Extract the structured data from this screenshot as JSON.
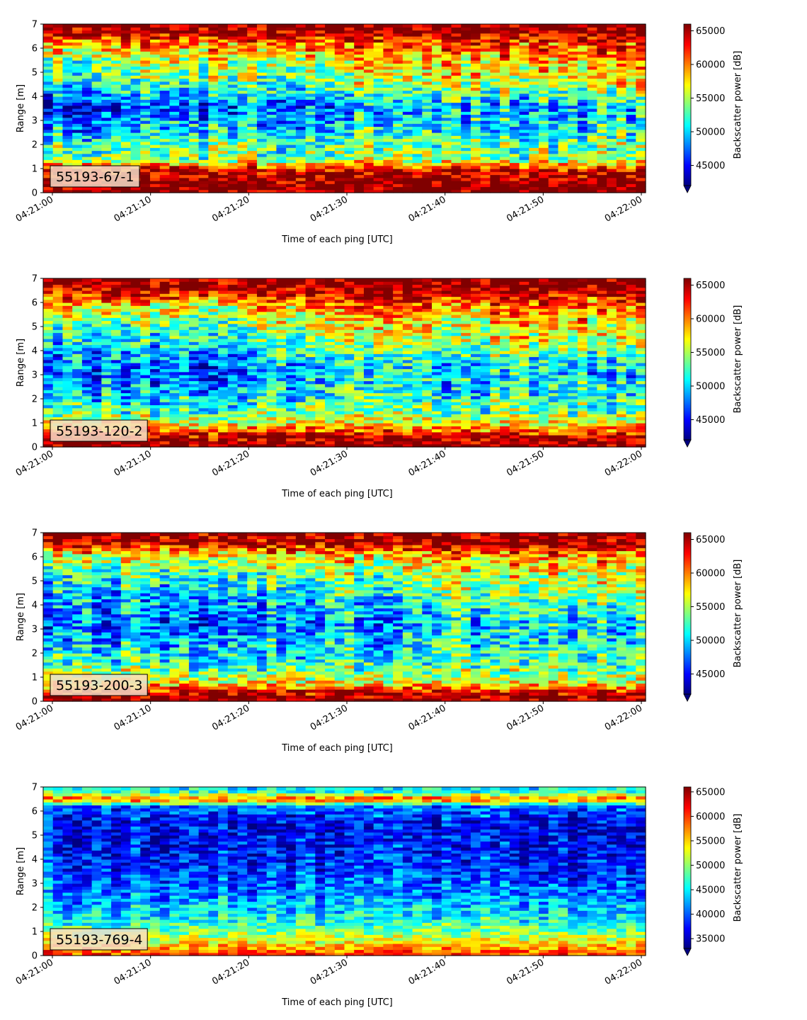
{
  "chart_data": [
    {
      "type": "heatmap",
      "label": "55193-67-1",
      "xlabel": "Time of each ping [UTC]",
      "ylabel": "Range [m]",
      "ylim": [
        0,
        7
      ],
      "yticks": [
        0,
        1,
        2,
        3,
        4,
        5,
        6,
        7
      ],
      "xticks": [
        "04:21:00",
        "04:21:10",
        "04:21:20",
        "04:21:30",
        "04:21:40",
        "04:21:50",
        "04:22:00"
      ],
      "colorbar": {
        "label": "Backscatter power [dB]",
        "range": [
          42000,
          66000
        ],
        "ticks": [
          45000,
          50000,
          55000,
          60000,
          65000
        ],
        "colormap": "jet"
      },
      "profile": [
        {
          "range": 0.1,
          "value": 66000
        },
        {
          "range": 0.5,
          "value": 66000
        },
        {
          "range": 1.0,
          "value": 63000
        },
        {
          "range": 1.4,
          "value": 54000
        },
        {
          "range": 2.0,
          "value": 52000
        },
        {
          "range": 3.0,
          "value": 47500
        },
        {
          "range": 3.6,
          "value": 45500
        },
        {
          "range": 4.5,
          "value": 51000
        },
        {
          "range": 5.5,
          "value": 54500
        },
        {
          "range": 6.2,
          "value": 59000
        },
        {
          "range": 6.7,
          "value": 65000
        },
        {
          "range": 7.0,
          "value": 66000
        }
      ],
      "trend": [
        {
          "range": 0.1,
          "delta": 0
        },
        {
          "range": 1.0,
          "delta": 0
        },
        {
          "range": 2.5,
          "delta": 2500
        },
        {
          "range": 4.5,
          "delta": 6000
        },
        {
          "range": 6.0,
          "delta": 4000
        },
        {
          "range": 7.0,
          "delta": 0
        }
      ]
    },
    {
      "type": "heatmap",
      "label": "55193-120-2",
      "xlabel": "Time of each ping [UTC]",
      "ylabel": "Range [m]",
      "ylim": [
        0,
        7
      ],
      "yticks": [
        0,
        1,
        2,
        3,
        4,
        5,
        6,
        7
      ],
      "xticks": [
        "04:21:00",
        "04:21:10",
        "04:21:20",
        "04:21:30",
        "04:21:40",
        "04:21:50",
        "04:22:00"
      ],
      "colorbar": {
        "label": "Backscatter power [dB]",
        "range": [
          42000,
          66000
        ],
        "ticks": [
          45000,
          50000,
          55000,
          60000,
          65000
        ],
        "colormap": "jet"
      },
      "profile": [
        {
          "range": 0.1,
          "value": 66000
        },
        {
          "range": 0.4,
          "value": 65000
        },
        {
          "range": 0.9,
          "value": 58000
        },
        {
          "range": 1.5,
          "value": 53000
        },
        {
          "range": 2.2,
          "value": 50000
        },
        {
          "range": 3.2,
          "value": 47000
        },
        {
          "range": 4.2,
          "value": 50000
        },
        {
          "range": 5.2,
          "value": 53500
        },
        {
          "range": 6.0,
          "value": 58000
        },
        {
          "range": 6.6,
          "value": 65000
        },
        {
          "range": 7.0,
          "value": 66000
        }
      ],
      "trend": [
        {
          "range": 0.1,
          "delta": 0
        },
        {
          "range": 1.0,
          "delta": 0
        },
        {
          "range": 2.5,
          "delta": 2500
        },
        {
          "range": 4.5,
          "delta": 6000
        },
        {
          "range": 6.0,
          "delta": 4000
        },
        {
          "range": 7.0,
          "delta": 0
        }
      ]
    },
    {
      "type": "heatmap",
      "label": "55193-200-3",
      "xlabel": "Time of each ping [UTC]",
      "ylabel": "Range [m]",
      "ylim": [
        0,
        7
      ],
      "yticks": [
        0,
        1,
        2,
        3,
        4,
        5,
        6,
        7
      ],
      "xticks": [
        "04:21:00",
        "04:21:10",
        "04:21:20",
        "04:21:30",
        "04:21:40",
        "04:21:50",
        "04:22:00"
      ],
      "colorbar": {
        "label": "Backscatter power [dB]",
        "range": [
          42000,
          66000
        ],
        "ticks": [
          45000,
          50000,
          55000,
          60000,
          65000
        ],
        "colormap": "jet"
      },
      "profile": [
        {
          "range": 0.1,
          "value": 66000
        },
        {
          "range": 0.35,
          "value": 64000
        },
        {
          "range": 0.8,
          "value": 57000
        },
        {
          "range": 1.5,
          "value": 52500
        },
        {
          "range": 2.2,
          "value": 50000
        },
        {
          "range": 3.2,
          "value": 47000
        },
        {
          "range": 4.2,
          "value": 48500
        },
        {
          "range": 5.2,
          "value": 51500
        },
        {
          "range": 6.0,
          "value": 56000
        },
        {
          "range": 6.6,
          "value": 64000
        },
        {
          "range": 7.0,
          "value": 66000
        }
      ],
      "trend": [
        {
          "range": 0.1,
          "delta": 0
        },
        {
          "range": 1.0,
          "delta": 0
        },
        {
          "range": 2.5,
          "delta": 2500
        },
        {
          "range": 4.5,
          "delta": 6000
        },
        {
          "range": 6.0,
          "delta": 4000
        },
        {
          "range": 7.0,
          "delta": 0
        }
      ]
    },
    {
      "type": "heatmap",
      "label": "55193-769-4",
      "xlabel": "Time of each ping [UTC]",
      "ylabel": "Range [m]",
      "ylim": [
        0,
        7
      ],
      "yticks": [
        0,
        1,
        2,
        3,
        4,
        5,
        6,
        7
      ],
      "xticks": [
        "04:21:00",
        "04:21:10",
        "04:21:20",
        "04:21:30",
        "04:21:40",
        "04:21:50",
        "04:22:00"
      ],
      "colorbar": {
        "label": "Backscatter power [dB]",
        "range": [
          33000,
          66000
        ],
        "ticks": [
          35000,
          40000,
          45000,
          50000,
          55000,
          60000,
          65000
        ],
        "colormap": "jet"
      },
      "profile": [
        {
          "range": 0.1,
          "value": 60000
        },
        {
          "range": 0.3,
          "value": 57000
        },
        {
          "range": 0.8,
          "value": 51000
        },
        {
          "range": 1.5,
          "value": 46000
        },
        {
          "range": 2.5,
          "value": 42000
        },
        {
          "range": 3.5,
          "value": 39000
        },
        {
          "range": 4.5,
          "value": 37500
        },
        {
          "range": 5.5,
          "value": 37000
        },
        {
          "range": 6.2,
          "value": 41000
        },
        {
          "range": 6.5,
          "value": 60000
        },
        {
          "range": 6.8,
          "value": 47000
        },
        {
          "range": 7.0,
          "value": 44000
        }
      ],
      "trend": [
        {
          "range": 0.1,
          "delta": 0
        },
        {
          "range": 7.0,
          "delta": 0
        }
      ]
    }
  ]
}
